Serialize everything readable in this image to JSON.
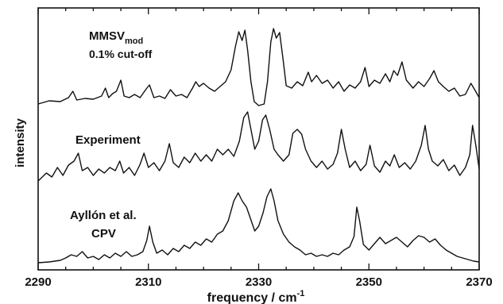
{
  "chart_data": {
    "type": "line",
    "xlabel": "frequency / cm",
    "xlabel_superscript": "-1",
    "ylabel": "intensity",
    "xlim": [
      2290,
      2370
    ],
    "x_ticks": [
      "2290",
      "2310",
      "2330",
      "2350",
      "2370"
    ],
    "grid": false,
    "line_color": "#111111",
    "series": [
      {
        "name": "MMSV",
        "name_subscript": "mod",
        "subtitle": "0.1% cut-off",
        "offset": 2.0,
        "points": [
          [
            2290.0,
            0.02
          ],
          [
            2292.0,
            0.06
          ],
          [
            2294.0,
            0.05
          ],
          [
            2295.5,
            0.1
          ],
          [
            2296.3,
            0.18
          ],
          [
            2297.0,
            0.07
          ],
          [
            2298.5,
            0.09
          ],
          [
            2300.0,
            0.08
          ],
          [
            2301.5,
            0.12
          ],
          [
            2302.2,
            0.22
          ],
          [
            2302.8,
            0.1
          ],
          [
            2303.5,
            0.15
          ],
          [
            2304.2,
            0.18
          ],
          [
            2305.0,
            0.32
          ],
          [
            2305.6,
            0.12
          ],
          [
            2306.5,
            0.1
          ],
          [
            2307.5,
            0.14
          ],
          [
            2308.5,
            0.1
          ],
          [
            2309.5,
            0.2
          ],
          [
            2310.2,
            0.26
          ],
          [
            2311.0,
            0.1
          ],
          [
            2312.0,
            0.12
          ],
          [
            2313.0,
            0.09
          ],
          [
            2314.0,
            0.2
          ],
          [
            2315.0,
            0.12
          ],
          [
            2316.0,
            0.14
          ],
          [
            2317.0,
            0.1
          ],
          [
            2318.0,
            0.22
          ],
          [
            2318.6,
            0.3
          ],
          [
            2319.2,
            0.24
          ],
          [
            2320.0,
            0.28
          ],
          [
            2321.0,
            0.22
          ],
          [
            2322.0,
            0.18
          ],
          [
            2323.0,
            0.24
          ],
          [
            2324.0,
            0.3
          ],
          [
            2325.0,
            0.45
          ],
          [
            2325.8,
            0.75
          ],
          [
            2326.4,
            0.93
          ],
          [
            2327.0,
            0.82
          ],
          [
            2327.5,
            0.95
          ],
          [
            2328.0,
            0.7
          ],
          [
            2328.6,
            0.3
          ],
          [
            2329.2,
            0.05
          ],
          [
            2330.0,
            0.0
          ],
          [
            2331.0,
            0.02
          ],
          [
            2331.6,
            0.3
          ],
          [
            2332.2,
            0.8
          ],
          [
            2332.7,
            0.97
          ],
          [
            2333.2,
            0.85
          ],
          [
            2333.8,
            0.92
          ],
          [
            2334.4,
            0.6
          ],
          [
            2335.0,
            0.25
          ],
          [
            2336.0,
            0.22
          ],
          [
            2337.0,
            0.3
          ],
          [
            2338.0,
            0.25
          ],
          [
            2339.0,
            0.42
          ],
          [
            2339.6,
            0.3
          ],
          [
            2340.5,
            0.38
          ],
          [
            2341.5,
            0.28
          ],
          [
            2342.5,
            0.32
          ],
          [
            2343.5,
            0.22
          ],
          [
            2344.5,
            0.3
          ],
          [
            2345.5,
            0.18
          ],
          [
            2346.5,
            0.26
          ],
          [
            2347.5,
            0.22
          ],
          [
            2348.5,
            0.3
          ],
          [
            2349.3,
            0.48
          ],
          [
            2350.0,
            0.24
          ],
          [
            2351.0,
            0.32
          ],
          [
            2352.0,
            0.28
          ],
          [
            2353.0,
            0.4
          ],
          [
            2353.8,
            0.3
          ],
          [
            2354.5,
            0.44
          ],
          [
            2355.2,
            0.38
          ],
          [
            2356.0,
            0.55
          ],
          [
            2356.8,
            0.32
          ],
          [
            2358.0,
            0.22
          ],
          [
            2359.0,
            0.3
          ],
          [
            2360.0,
            0.24
          ],
          [
            2361.0,
            0.34
          ],
          [
            2361.8,
            0.44
          ],
          [
            2362.6,
            0.3
          ],
          [
            2363.5,
            0.24
          ],
          [
            2364.5,
            0.18
          ],
          [
            2365.5,
            0.22
          ],
          [
            2366.5,
            0.12
          ],
          [
            2367.5,
            0.14
          ],
          [
            2368.5,
            0.28
          ],
          [
            2369.2,
            0.2
          ],
          [
            2370.0,
            0.1
          ]
        ]
      },
      {
        "name": "Experiment",
        "offset": 1.0,
        "points": [
          [
            2290.0,
            0.05
          ],
          [
            2291.5,
            0.15
          ],
          [
            2292.5,
            0.1
          ],
          [
            2293.5,
            0.22
          ],
          [
            2294.5,
            0.12
          ],
          [
            2295.5,
            0.25
          ],
          [
            2296.5,
            0.3
          ],
          [
            2297.3,
            0.4
          ],
          [
            2298.0,
            0.18
          ],
          [
            2299.0,
            0.22
          ],
          [
            2300.0,
            0.12
          ],
          [
            2301.0,
            0.2
          ],
          [
            2302.0,
            0.15
          ],
          [
            2303.0,
            0.22
          ],
          [
            2304.0,
            0.18
          ],
          [
            2304.8,
            0.3
          ],
          [
            2305.5,
            0.15
          ],
          [
            2306.5,
            0.22
          ],
          [
            2307.5,
            0.12
          ],
          [
            2308.5,
            0.26
          ],
          [
            2309.2,
            0.4
          ],
          [
            2310.0,
            0.22
          ],
          [
            2311.0,
            0.28
          ],
          [
            2312.0,
            0.18
          ],
          [
            2313.0,
            0.3
          ],
          [
            2313.8,
            0.52
          ],
          [
            2314.5,
            0.28
          ],
          [
            2315.5,
            0.22
          ],
          [
            2316.5,
            0.35
          ],
          [
            2317.5,
            0.28
          ],
          [
            2318.5,
            0.4
          ],
          [
            2319.5,
            0.3
          ],
          [
            2320.5,
            0.38
          ],
          [
            2321.5,
            0.3
          ],
          [
            2322.5,
            0.45
          ],
          [
            2323.5,
            0.38
          ],
          [
            2324.5,
            0.45
          ],
          [
            2325.5,
            0.36
          ],
          [
            2326.5,
            0.55
          ],
          [
            2327.3,
            0.85
          ],
          [
            2328.0,
            0.92
          ],
          [
            2328.6,
            0.7
          ],
          [
            2329.3,
            0.45
          ],
          [
            2330.0,
            0.55
          ],
          [
            2330.7,
            0.82
          ],
          [
            2331.3,
            0.88
          ],
          [
            2332.0,
            0.7
          ],
          [
            2332.8,
            0.45
          ],
          [
            2333.5,
            0.38
          ],
          [
            2334.5,
            0.3
          ],
          [
            2335.5,
            0.38
          ],
          [
            2336.2,
            0.65
          ],
          [
            2337.0,
            0.7
          ],
          [
            2337.8,
            0.64
          ],
          [
            2338.5,
            0.45
          ],
          [
            2339.5,
            0.3
          ],
          [
            2340.5,
            0.22
          ],
          [
            2341.5,
            0.3
          ],
          [
            2342.5,
            0.2
          ],
          [
            2343.5,
            0.26
          ],
          [
            2344.3,
            0.4
          ],
          [
            2345.0,
            0.7
          ],
          [
            2345.7,
            0.45
          ],
          [
            2346.5,
            0.22
          ],
          [
            2347.5,
            0.3
          ],
          [
            2348.5,
            0.18
          ],
          [
            2349.5,
            0.26
          ],
          [
            2350.2,
            0.5
          ],
          [
            2351.0,
            0.24
          ],
          [
            2352.0,
            0.16
          ],
          [
            2353.0,
            0.3
          ],
          [
            2353.8,
            0.24
          ],
          [
            2354.6,
            0.38
          ],
          [
            2355.5,
            0.22
          ],
          [
            2356.5,
            0.28
          ],
          [
            2357.5,
            0.2
          ],
          [
            2358.5,
            0.3
          ],
          [
            2359.5,
            0.5
          ],
          [
            2360.2,
            0.75
          ],
          [
            2360.8,
            0.45
          ],
          [
            2361.5,
            0.3
          ],
          [
            2362.5,
            0.24
          ],
          [
            2363.5,
            0.32
          ],
          [
            2364.5,
            0.18
          ],
          [
            2365.5,
            0.25
          ],
          [
            2366.5,
            0.12
          ],
          [
            2367.5,
            0.22
          ],
          [
            2368.3,
            0.38
          ],
          [
            2368.8,
            0.75
          ],
          [
            2369.4,
            0.5
          ],
          [
            2370.0,
            0.2
          ]
        ]
      },
      {
        "name": "Ayllón et al.",
        "subtitle": "CPV",
        "offset": 0.0,
        "points": [
          [
            2290.0,
            0.02
          ],
          [
            2292.0,
            0.03
          ],
          [
            2294.0,
            0.05
          ],
          [
            2295.0,
            0.08
          ],
          [
            2296.0,
            0.12
          ],
          [
            2297.0,
            0.1
          ],
          [
            2298.0,
            0.16
          ],
          [
            2299.0,
            0.08
          ],
          [
            2300.0,
            0.1
          ],
          [
            2301.0,
            0.06
          ],
          [
            2302.0,
            0.12
          ],
          [
            2303.0,
            0.08
          ],
          [
            2304.0,
            0.14
          ],
          [
            2305.0,
            0.1
          ],
          [
            2306.0,
            0.16
          ],
          [
            2307.0,
            0.1
          ],
          [
            2308.0,
            0.12
          ],
          [
            2309.0,
            0.16
          ],
          [
            2309.7,
            0.3
          ],
          [
            2310.2,
            0.48
          ],
          [
            2310.8,
            0.28
          ],
          [
            2311.5,
            0.14
          ],
          [
            2312.5,
            0.18
          ],
          [
            2313.5,
            0.12
          ],
          [
            2314.5,
            0.2
          ],
          [
            2315.5,
            0.16
          ],
          [
            2316.5,
            0.24
          ],
          [
            2317.5,
            0.2
          ],
          [
            2318.5,
            0.28
          ],
          [
            2319.5,
            0.24
          ],
          [
            2320.5,
            0.32
          ],
          [
            2321.5,
            0.28
          ],
          [
            2322.5,
            0.38
          ],
          [
            2323.5,
            0.42
          ],
          [
            2324.5,
            0.55
          ],
          [
            2325.5,
            0.8
          ],
          [
            2326.3,
            0.9
          ],
          [
            2327.0,
            0.8
          ],
          [
            2327.8,
            0.72
          ],
          [
            2328.5,
            0.58
          ],
          [
            2329.3,
            0.42
          ],
          [
            2330.0,
            0.48
          ],
          [
            2330.8,
            0.65
          ],
          [
            2331.5,
            0.85
          ],
          [
            2332.2,
            0.95
          ],
          [
            2332.8,
            0.8
          ],
          [
            2333.5,
            0.55
          ],
          [
            2334.5,
            0.38
          ],
          [
            2335.5,
            0.28
          ],
          [
            2336.5,
            0.22
          ],
          [
            2337.5,
            0.18
          ],
          [
            2338.5,
            0.12
          ],
          [
            2339.5,
            0.14
          ],
          [
            2340.5,
            0.1
          ],
          [
            2341.5,
            0.12
          ],
          [
            2342.5,
            0.1
          ],
          [
            2343.5,
            0.14
          ],
          [
            2344.5,
            0.12
          ],
          [
            2345.5,
            0.18
          ],
          [
            2346.5,
            0.22
          ],
          [
            2347.3,
            0.35
          ],
          [
            2347.8,
            0.72
          ],
          [
            2348.3,
            0.55
          ],
          [
            2349.0,
            0.25
          ],
          [
            2350.0,
            0.18
          ],
          [
            2351.0,
            0.26
          ],
          [
            2352.0,
            0.34
          ],
          [
            2353.0,
            0.26
          ],
          [
            2354.0,
            0.3
          ],
          [
            2355.0,
            0.34
          ],
          [
            2356.0,
            0.28
          ],
          [
            2357.0,
            0.22
          ],
          [
            2358.0,
            0.3
          ],
          [
            2359.0,
            0.36
          ],
          [
            2360.0,
            0.34
          ],
          [
            2361.0,
            0.28
          ],
          [
            2362.0,
            0.32
          ],
          [
            2363.0,
            0.24
          ],
          [
            2364.0,
            0.18
          ],
          [
            2365.0,
            0.14
          ],
          [
            2366.0,
            0.1
          ],
          [
            2367.0,
            0.08
          ],
          [
            2368.0,
            0.06
          ],
          [
            2369.0,
            0.04
          ],
          [
            2370.0,
            0.03
          ]
        ]
      }
    ]
  }
}
